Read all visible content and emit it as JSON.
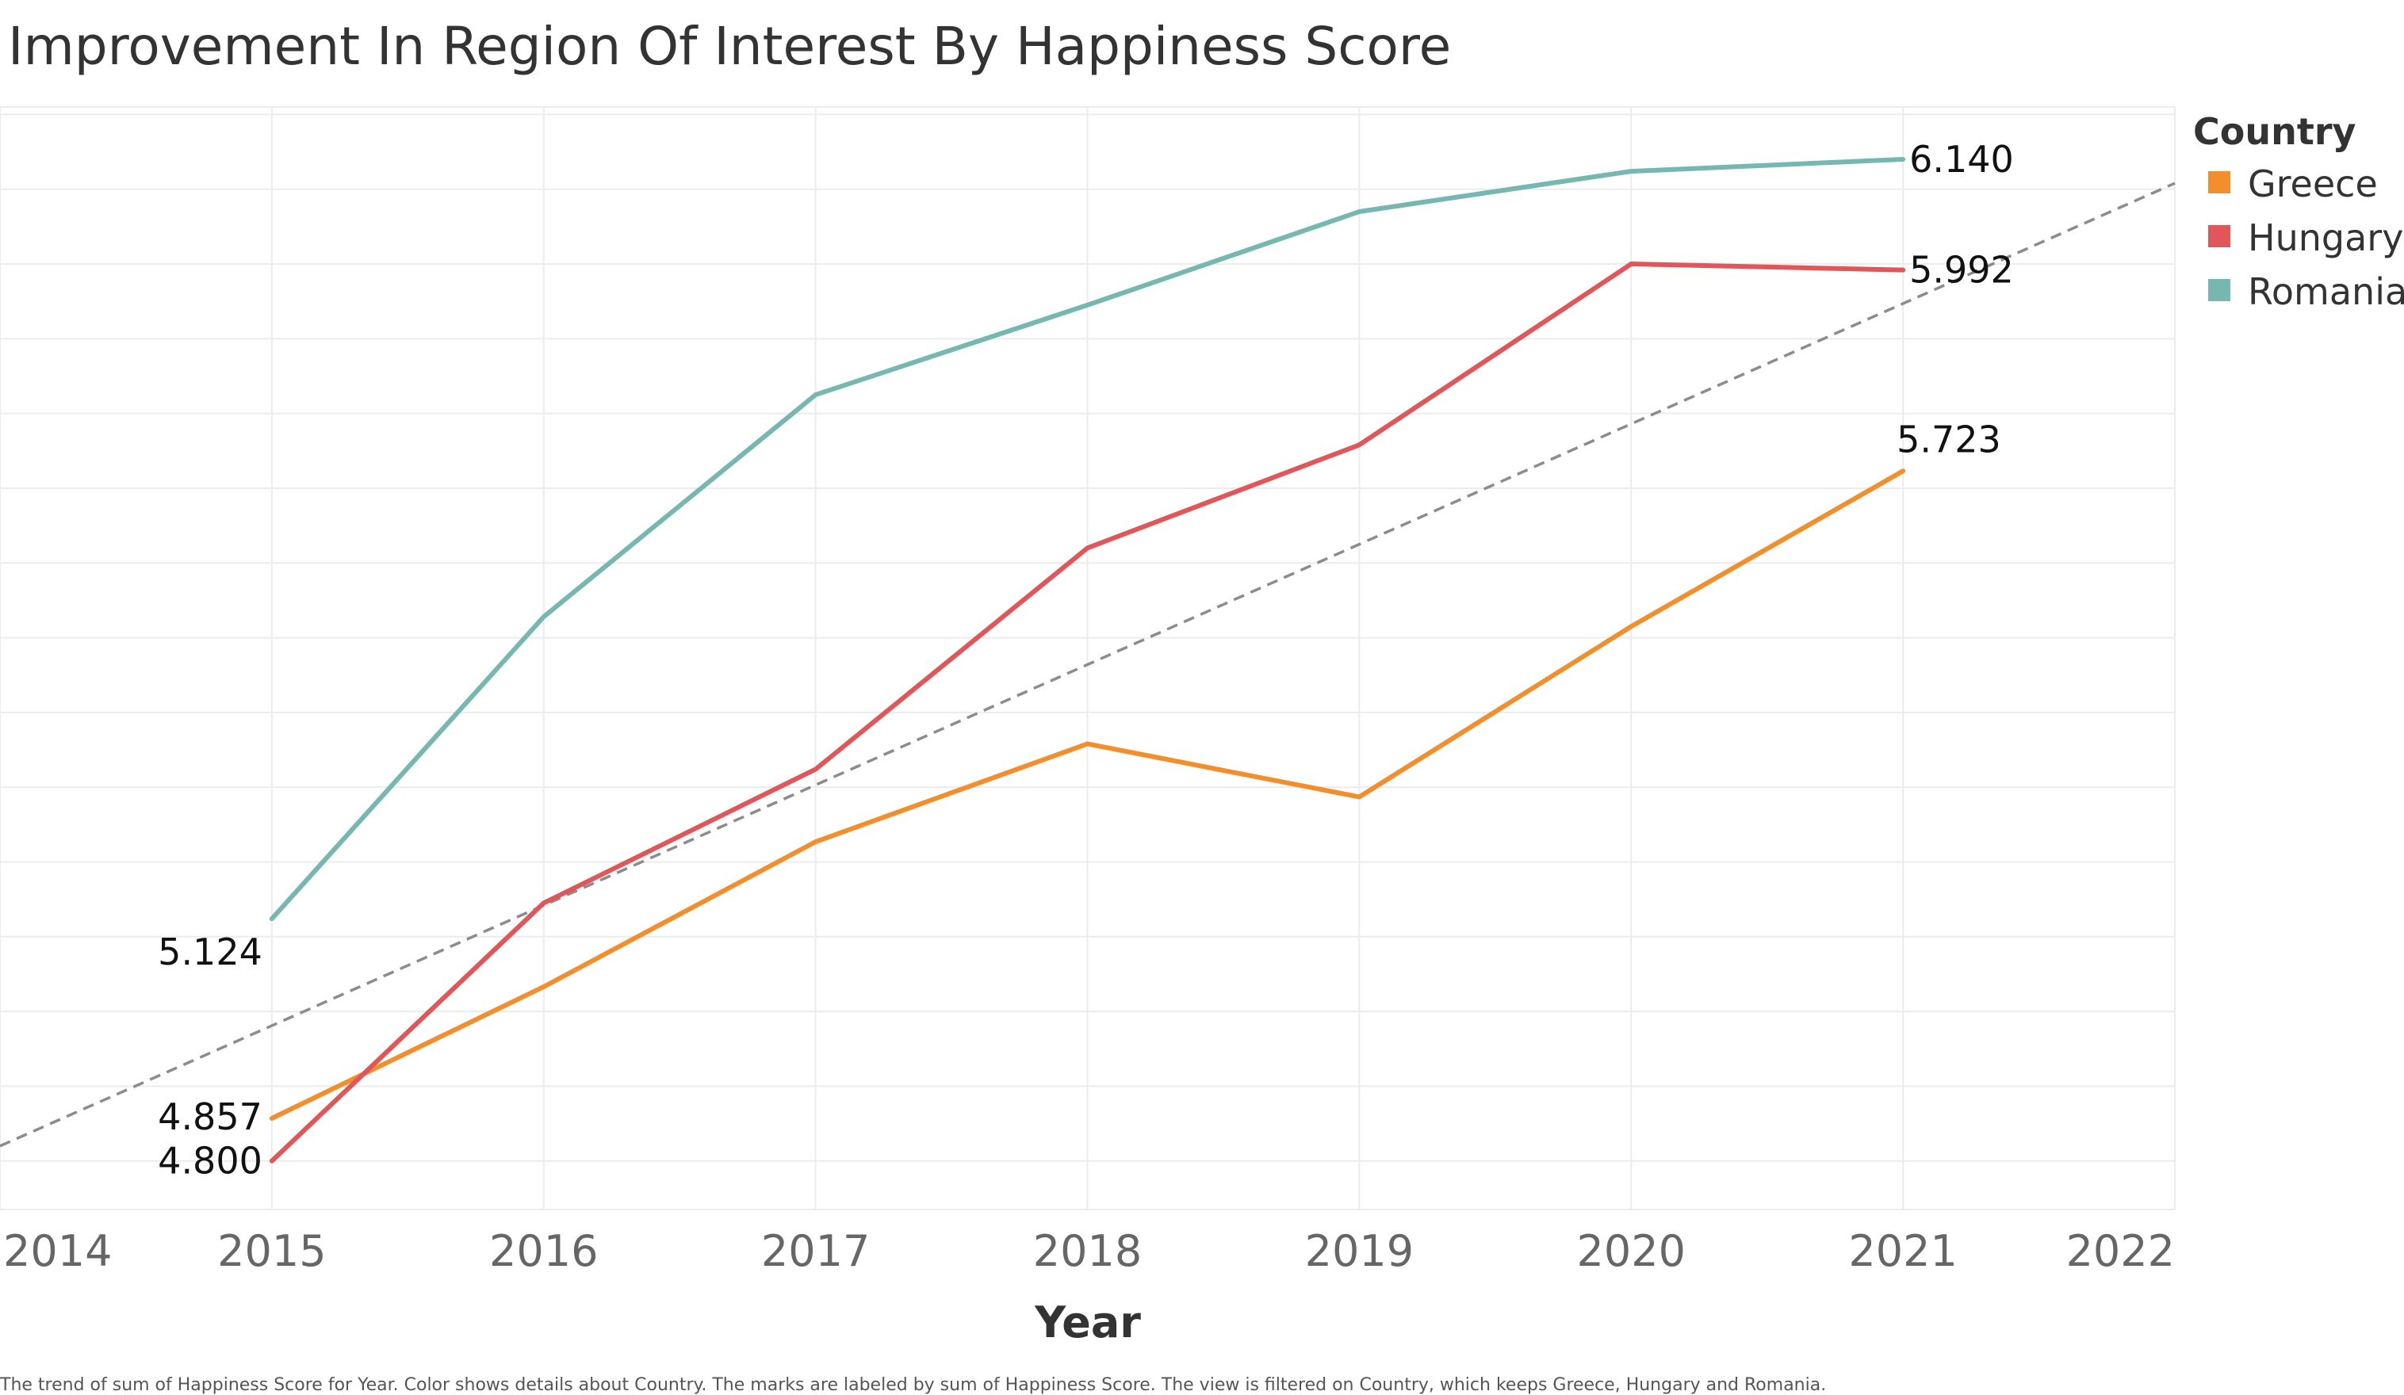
{
  "title": "Improvement In Region Of Interest By Happiness Score",
  "caption": "The trend of sum of Happiness Score for Year.  Color shows details about Country.  The marks are labeled by sum of Happiness Score. The view is filtered on Country, which keeps Greece, Hungary and Romania.",
  "chart_data": {
    "type": "line",
    "xlabel": "Year",
    "ylabel": "",
    "x": [
      2015,
      2016,
      2017,
      2018,
      2019,
      2020,
      2021
    ],
    "xlim": [
      2014,
      2022
    ],
    "ylim": [
      4.735,
      6.21
    ],
    "x_ticks": [
      "2014",
      "2015",
      "2016",
      "2017",
      "2018",
      "2019",
      "2020",
      "2021",
      "2022"
    ],
    "grid": true,
    "legend": {
      "title": "Country",
      "position": "right"
    },
    "series": [
      {
        "name": "Greece",
        "color": "#F28E2B",
        "values": [
          4.857,
          5.033,
          5.227,
          5.358,
          5.287,
          5.515,
          5.723
        ],
        "labels": {
          "0": "4.857",
          "6": "5.723"
        }
      },
      {
        "name": "Hungary",
        "color": "#E15759",
        "values": [
          4.8,
          5.145,
          5.324,
          5.62,
          5.758,
          6.0,
          5.992
        ],
        "labels": {
          "0": "4.800",
          "6": "5.992"
        }
      },
      {
        "name": "Romania",
        "color": "#76B7B2",
        "values": [
          5.124,
          5.528,
          5.825,
          5.945,
          6.07,
          6.124,
          6.14
        ],
        "labels": {
          "0": "5.124",
          "6": "6.140"
        }
      }
    ],
    "trend_line": {
      "style": "dashed",
      "color": "#8c8c8c",
      "points": [
        [
          2014,
          4.82
        ],
        [
          2022,
          6.108
        ]
      ]
    }
  }
}
